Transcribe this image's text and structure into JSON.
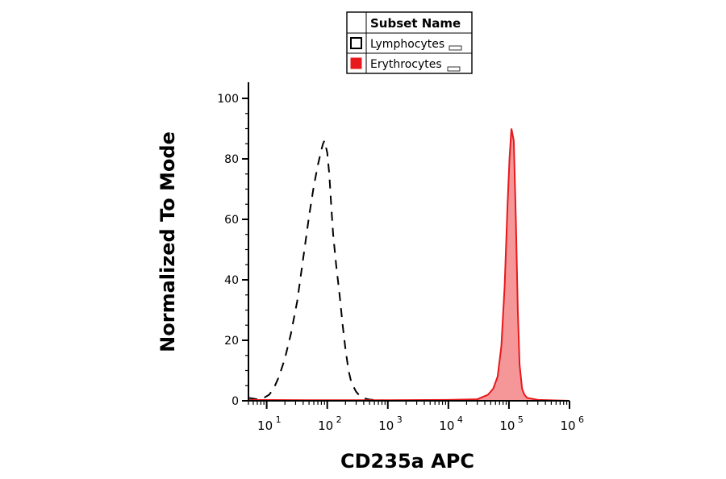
{
  "chart_data": {
    "type": "area",
    "xlabel": "CD235a APC",
    "ylabel": "Normalized To Mode",
    "xscale": "log",
    "xlim": [
      5,
      1000000
    ],
    "ylim": [
      0,
      100
    ],
    "yticks": [
      0,
      20,
      40,
      60,
      80,
      100
    ],
    "yticklabels": [
      "0",
      "20",
      "40",
      "60",
      "80",
      "100"
    ],
    "xticks": [
      10,
      100,
      1000,
      10000,
      100000,
      1000000
    ],
    "xtick_bases": [
      "10",
      "10",
      "10",
      "10",
      "10",
      "10"
    ],
    "xtick_exponents": [
      "1",
      "2",
      "3",
      "4",
      "5",
      "6"
    ],
    "grid": false,
    "legend": {
      "placement": "top-center",
      "header": "Subset Name",
      "entries": [
        "Lymphocytes",
        "Erythrocytes"
      ]
    },
    "series": [
      {
        "name": "Lymphocytes",
        "style": "dashed-outline",
        "color": "#000000",
        "x": [
          5,
          7,
          9,
          11,
          13,
          16,
          20,
          25,
          32,
          40,
          50,
          60,
          70,
          80,
          85,
          90,
          95,
          100,
          108,
          116,
          125,
          140,
          160,
          180,
          200,
          225,
          250,
          300,
          350,
          400,
          500,
          700,
          1000,
          2000,
          10000,
          50000,
          1000000
        ],
        "y": [
          1,
          0.5,
          1,
          2,
          4,
          8,
          14,
          22,
          33,
          47,
          61,
          71,
          78,
          83,
          85,
          86,
          84,
          82,
          75,
          65,
          55,
          45,
          35,
          25,
          17,
          10,
          6,
          3,
          1.5,
          0.8,
          0.4,
          0.2,
          0.1,
          0,
          0,
          0,
          0
        ]
      },
      {
        "name": "Erythrocytes",
        "style": "filled",
        "color": "#e8191c",
        "x": [
          5,
          100,
          1000,
          10000,
          30000,
          45000,
          55000,
          65000,
          75000,
          85000,
          95000,
          102000,
          110000,
          120000,
          130000,
          140000,
          150000,
          165000,
          180000,
          200000,
          300000,
          1000000
        ],
        "y": [
          0.3,
          0.2,
          0.2,
          0.3,
          0.5,
          2,
          4,
          8,
          18,
          38,
          65,
          80,
          90,
          86,
          60,
          30,
          12,
          4,
          2,
          1,
          0.3,
          0
        ]
      }
    ]
  }
}
